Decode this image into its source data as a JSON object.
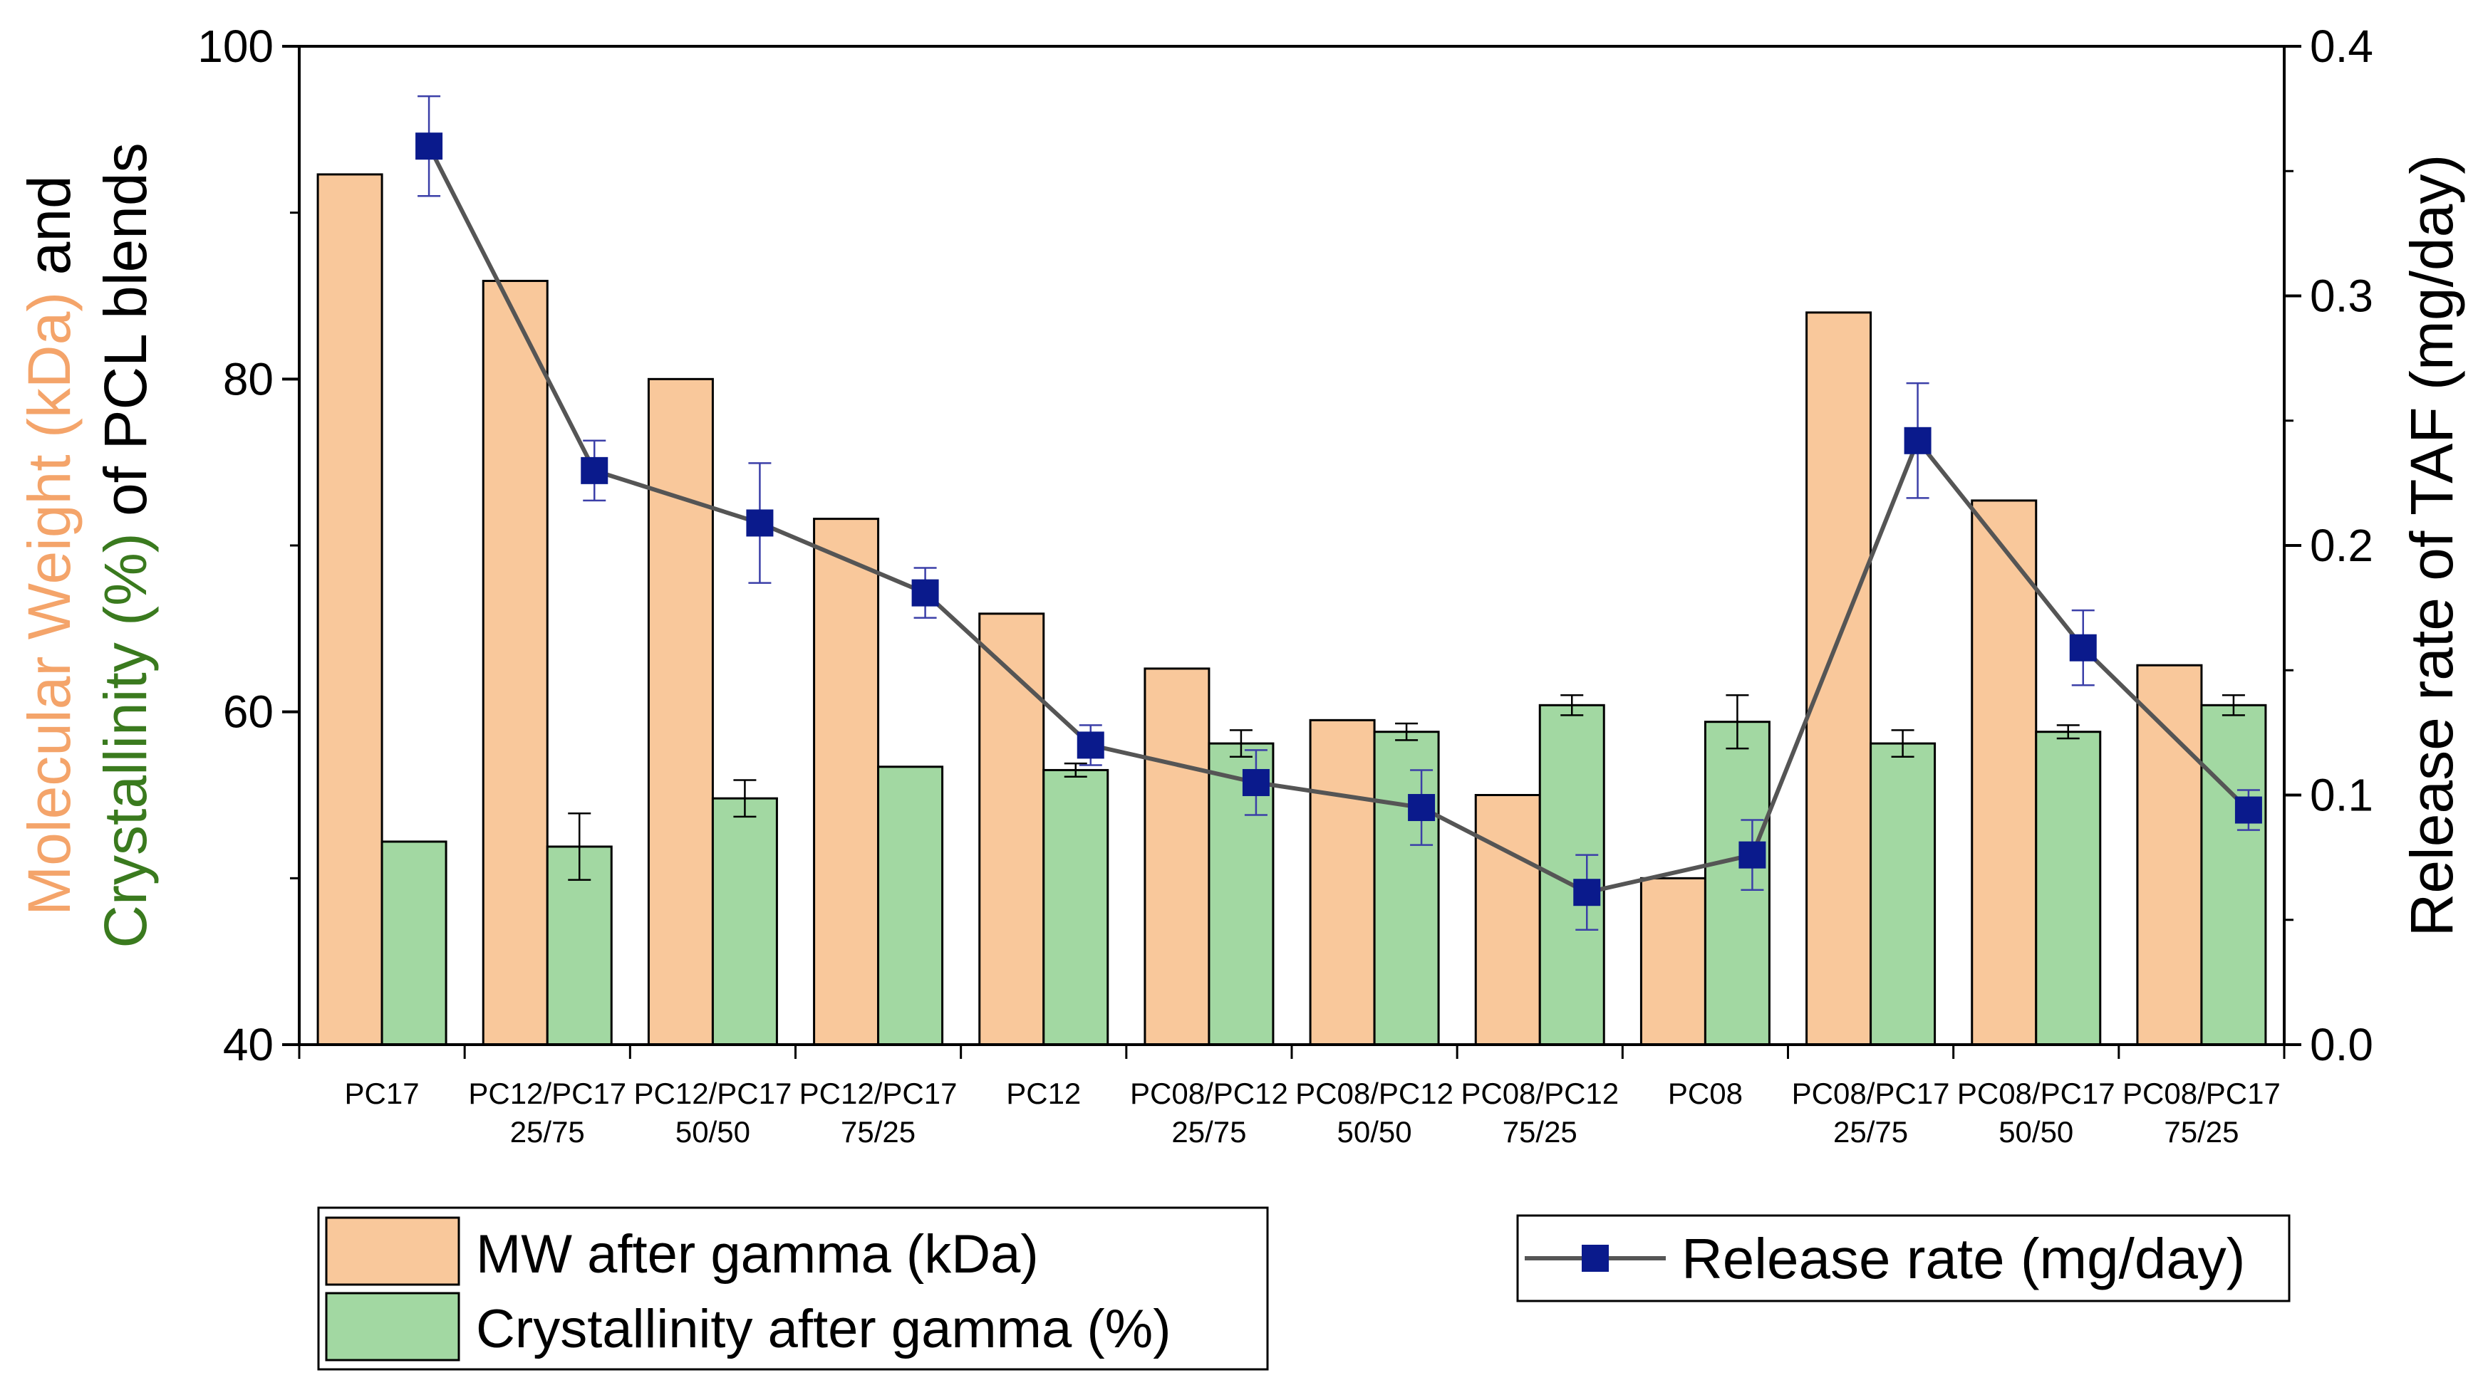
{
  "chart_data": {
    "type": "bar",
    "categories": [
      [
        "PC17"
      ],
      [
        "PC12/PC17",
        "25/75"
      ],
      [
        "PC12/PC17",
        "50/50"
      ],
      [
        "PC12/PC17",
        "75/25"
      ],
      [
        "PC12"
      ],
      [
        "PC08/PC12",
        "25/75"
      ],
      [
        "PC08/PC12",
        "50/50"
      ],
      [
        "PC08/PC12",
        "75/25"
      ],
      [
        "PC08"
      ],
      [
        "PC08/PC17",
        "25/75"
      ],
      [
        "PC08/PC17",
        "50/50"
      ],
      [
        "PC08/PC17",
        "75/25"
      ]
    ],
    "left_axis": {
      "ylim": [
        40,
        100
      ],
      "ticks": [
        "40",
        "60",
        "80",
        "100"
      ],
      "tick_values": [
        40,
        60,
        80,
        100
      ],
      "minor_step": 10,
      "label_parts": [
        {
          "line": 1,
          "text": "Molecular Weight (kDa)",
          "color": "#f4a46a"
        },
        {
          "line": 1,
          "text": " and",
          "color": "#000000"
        },
        {
          "line": 2,
          "text": "Crystallinity (%)",
          "color": "#3a7a1e"
        },
        {
          "line": 2,
          "text": " of PCL blends",
          "color": "#000000"
        }
      ]
    },
    "right_axis": {
      "ylim": [
        0.0,
        0.4
      ],
      "ticks": [
        "0.0",
        "0.1",
        "0.2",
        "0.3",
        "0.4"
      ],
      "tick_values": [
        0.0,
        0.1,
        0.2,
        0.3,
        0.4
      ],
      "minor_step": 0.05,
      "label": "Release rate of TAF (mg/day)"
    },
    "series": [
      {
        "name": "MW after gamma (kDa)",
        "type": "bar",
        "axis": "left",
        "color": "#f9c89b",
        "values": [
          92.3,
          85.9,
          80.0,
          71.6,
          65.9,
          62.6,
          59.5,
          55.0,
          50.0,
          84.0,
          72.7,
          62.8
        ],
        "errors": [
          0,
          0,
          0,
          0,
          0,
          0,
          0,
          0,
          0,
          0,
          0,
          0
        ]
      },
      {
        "name": "Crystallinity after gamma (%)",
        "type": "bar",
        "axis": "left",
        "color": "#a2d8a2",
        "values": [
          52.2,
          51.9,
          54.8,
          56.7,
          56.5,
          58.1,
          58.8,
          60.4,
          59.4,
          58.1,
          58.8,
          60.4
        ],
        "errors": [
          0,
          2.0,
          1.1,
          0,
          0.4,
          0.8,
          0.5,
          0.6,
          1.6,
          0.8,
          0.4,
          0.6
        ]
      },
      {
        "name": "Release rate (mg/day)",
        "type": "line",
        "axis": "right",
        "color": "#0a1a8c",
        "line_color": "#555555",
        "values": [
          0.36,
          0.23,
          0.209,
          0.181,
          0.12,
          0.105,
          0.095,
          0.061,
          0.076,
          0.242,
          0.159,
          0.094
        ],
        "errors": [
          0.02,
          0.012,
          0.024,
          0.01,
          0.008,
          0.013,
          0.015,
          0.015,
          0.014,
          0.023,
          0.015,
          0.008
        ]
      }
    ],
    "legend_placement": "bottom"
  }
}
